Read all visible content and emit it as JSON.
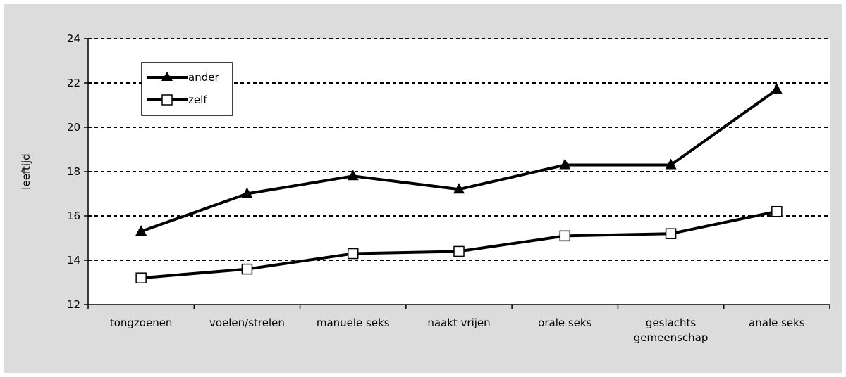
{
  "chart_data": {
    "type": "line",
    "title": "",
    "xlabel": "",
    "ylabel": "leeftijd",
    "ylim": [
      12,
      24
    ],
    "yticks": [
      12,
      14,
      16,
      18,
      20,
      22,
      24
    ],
    "grid": true,
    "legend_position": "top-left",
    "categories": [
      [
        "tongzoenen"
      ],
      [
        "voelen/strelen"
      ],
      [
        "manuele seks"
      ],
      [
        "naakt vrijen"
      ],
      [
        "orale seks"
      ],
      [
        "geslachts",
        "gemeenschap"
      ],
      [
        "anale seks"
      ]
    ],
    "series": [
      {
        "name": "ander",
        "marker": "triangle",
        "values": [
          15.3,
          17.0,
          17.8,
          17.2,
          18.3,
          18.3,
          21.7
        ]
      },
      {
        "name": "zelf",
        "marker": "square",
        "values": [
          13.2,
          13.6,
          14.3,
          14.4,
          15.1,
          15.2,
          16.2
        ]
      }
    ],
    "colors": {
      "background": "#dcdcdc",
      "plot": "#ffffff",
      "line": "#000000"
    }
  }
}
